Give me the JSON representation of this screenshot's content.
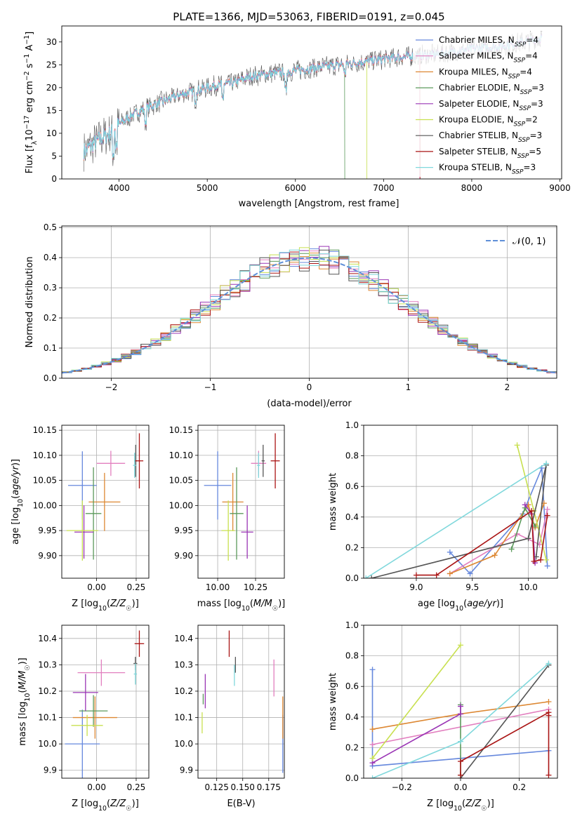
{
  "figure_title": "PLATE=1366, MJD=53063, FIBERID=0191, z=0.045",
  "colors": {
    "Chabrier MILES": "#6688dd",
    "Salpeter MILES": "#e27fbf",
    "Kroupa MILES": "#dd8833",
    "Chabrier ELODIE": "#5b9a5b",
    "Salpeter ELODIE": "#9a35b5",
    "Kroupa ELODIE": "#c8e050",
    "Chabrier STELIB": "#555555",
    "Salpeter STELIB": "#aa1515",
    "Kroupa STELIB": "#80d8dc",
    "normal": "#5f8fd8"
  },
  "legend_spectrum": [
    {
      "name": "Chabrier MILES",
      "nssp": "4"
    },
    {
      "name": "Salpeter MILES",
      "nssp": "4"
    },
    {
      "name": "Kroupa MILES",
      "nssp": "4"
    },
    {
      "name": "Chabrier ELODIE",
      "nssp": "3"
    },
    {
      "name": "Salpeter ELODIE",
      "nssp": "3"
    },
    {
      "name": "Kroupa ELODIE",
      "nssp": "2"
    },
    {
      "name": "Chabrier STELIB",
      "nssp": "3"
    },
    {
      "name": "Salpeter STELIB",
      "nssp": "5"
    },
    {
      "name": "Kroupa STELIB",
      "nssp": "3"
    }
  ],
  "chart_data": [
    {
      "id": "spectrum",
      "type": "line",
      "xlabel": "wavelength [Angstrom, rest frame]",
      "ylabel": "Flux [f_λ 10^-17 erg cm^-2 s^-1 A^-1]",
      "xlim": [
        3350,
        9020
      ],
      "ylim": [
        0,
        33.5
      ],
      "xticks": [
        4000,
        5000,
        6000,
        7000,
        8000,
        9000
      ],
      "yticks": [
        0,
        5,
        10,
        15,
        20,
        25,
        30
      ],
      "grid": false,
      "legend_position": "right",
      "continuum_x": [
        3600,
        3700,
        3800,
        3900,
        4000,
        4150,
        4300,
        4500,
        4700,
        4900,
        5100,
        5300,
        5500,
        5700,
        5900,
        6100,
        6300,
        6500,
        6700,
        6900,
        7100,
        7400,
        7700,
        8000,
        8300,
        8600,
        8800
      ],
      "continuum_y": [
        6,
        7.5,
        9,
        10,
        12,
        14,
        15.5,
        17,
        18.5,
        19.5,
        20.5,
        21,
        22.5,
        23,
        23.5,
        24,
        24.5,
        25,
        25.5,
        26,
        26.5,
        27,
        27.5,
        28.5,
        29,
        30,
        31
      ],
      "spectrum_range": [
        3600,
        8800
      ],
      "dropoffs": [
        {
          "series": "Kroupa ELODIE",
          "x": 6810
        },
        {
          "series": "Kroupa MILES",
          "x": 7410
        },
        {
          "series": "Salpeter MILES",
          "x": 7410
        },
        {
          "series": "Salpeter STELIB",
          "x": 7415
        },
        {
          "series": "Chabrier ELODIE",
          "x": 6560
        }
      ]
    },
    {
      "id": "residuals",
      "type": "line",
      "xlabel": "(data-model)/error",
      "ylabel": "Normed distribution",
      "xlim": [
        -2.5,
        2.5
      ],
      "ylim": [
        0,
        0.505
      ],
      "xticks": [
        -2,
        -1,
        0,
        1,
        2
      ],
      "yticks": [
        0.0,
        0.1,
        0.2,
        0.3,
        0.4,
        0.5
      ],
      "grid": true,
      "legend": [
        {
          "name": "𝒩(0, 1)",
          "style": "dashed"
        }
      ],
      "legend_position": "upper right",
      "histogram_bin_width": 0.1,
      "histogram_series": [
        "Chabrier MILES",
        "Salpeter MILES",
        "Kroupa MILES",
        "Chabrier ELODIE",
        "Salpeter ELODIE",
        "Kroupa ELODIE",
        "Chabrier STELIB",
        "Salpeter STELIB",
        "Kroupa STELIB"
      ]
    },
    {
      "id": "age_vs_Z",
      "type": "scatter",
      "xlabel": "Z [log10(Z/Z☉)]",
      "ylabel": "age [log10(age/yr)]",
      "xlim": [
        -0.22,
        0.33
      ],
      "ylim": [
        9.855,
        10.16
      ],
      "xticks": [
        0.0,
        0.25
      ],
      "yticks": [
        9.9,
        9.95,
        10.0,
        10.05,
        10.1,
        10.15
      ],
      "grid": true,
      "points": [
        {
          "series": "Chabrier MILES",
          "x": -0.09,
          "xerr": 0.09,
          "y": 10.04,
          "yerr": 0.068
        },
        {
          "series": "Salpeter MILES",
          "x": 0.09,
          "xerr": 0.09,
          "y": 10.084,
          "yerr": 0.025
        },
        {
          "series": "Kroupa MILES",
          "x": 0.05,
          "xerr": 0.1,
          "y": 10.007,
          "yerr": 0.058
        },
        {
          "series": "Chabrier ELODIE",
          "x": -0.02,
          "xerr": 0.05,
          "y": 9.984,
          "yerr": 0.092
        },
        {
          "series": "Salpeter ELODIE",
          "x": -0.08,
          "xerr": 0.06,
          "y": 9.947,
          "yerr": 0.053
        },
        {
          "series": "Kroupa ELODIE",
          "x": -0.09,
          "xerr": 0.1,
          "y": 9.95,
          "yerr": 0.06
        },
        {
          "series": "Chabrier STELIB",
          "x": 0.247,
          "xerr": 0.008,
          "y": 10.089,
          "yerr": 0.032
        },
        {
          "series": "Salpeter STELIB",
          "x": 0.27,
          "xerr": 0.025,
          "y": 10.089,
          "yerr": 0.055
        },
        {
          "series": "Kroupa STELIB",
          "x": 0.24,
          "xerr": 0.01,
          "y": 10.08,
          "yerr": 0.025
        }
      ]
    },
    {
      "id": "age_vs_mass",
      "type": "scatter",
      "xlabel": "mass [log10(M/M☉)]",
      "ylabel": "",
      "xlim": [
        9.87,
        10.44
      ],
      "ylim": [
        9.855,
        10.16
      ],
      "xticks": [
        10.0,
        10.25
      ],
      "yticks": [
        9.9,
        9.95,
        10.0,
        10.05,
        10.1,
        10.15
      ],
      "grid": true,
      "points": [
        {
          "series": "Chabrier MILES",
          "x": 10.0,
          "xerr": 0.09,
          "y": 10.04,
          "yerr": 0.068
        },
        {
          "series": "Salpeter MILES",
          "x": 10.27,
          "xerr": 0.05,
          "y": 10.084,
          "yerr": 0.025
        },
        {
          "series": "Kroupa MILES",
          "x": 10.1,
          "xerr": 0.07,
          "y": 10.007,
          "yerr": 0.058
        },
        {
          "series": "Chabrier ELODIE",
          "x": 10.125,
          "xerr": 0.045,
          "y": 9.984,
          "yerr": 0.092
        },
        {
          "series": "Salpeter ELODIE",
          "x": 10.195,
          "xerr": 0.04,
          "y": 9.947,
          "yerr": 0.053
        },
        {
          "series": "Kroupa ELODIE",
          "x": 10.07,
          "xerr": 0.045,
          "y": 9.95,
          "yerr": 0.06
        },
        {
          "series": "Chabrier STELIB",
          "x": 10.3,
          "xerr": 0.01,
          "y": 10.089,
          "yerr": 0.032
        },
        {
          "series": "Salpeter STELIB",
          "x": 10.38,
          "xerr": 0.03,
          "y": 10.089,
          "yerr": 0.055
        },
        {
          "series": "Kroupa STELIB",
          "x": 10.27,
          "xerr": 0.01,
          "y": 10.08,
          "yerr": 0.025
        }
      ]
    },
    {
      "id": "weight_vs_age",
      "type": "line",
      "xlabel": "age [log10(age/yr)]",
      "ylabel": "mass weight",
      "xlim": [
        8.53,
        10.26
      ],
      "ylim": [
        0,
        1.0
      ],
      "xticks": [
        9.0,
        9.5,
        10.0
      ],
      "yticks": [
        0.0,
        0.2,
        0.4,
        0.6,
        0.8,
        1.0
      ],
      "grid": true,
      "series": [
        {
          "name": "Chabrier MILES",
          "x": [
            9.3,
            9.48,
            9.95,
            10.12,
            10.17
          ],
          "y": [
            0.17,
            0.03,
            0.42,
            0.72,
            0.08
          ]
        },
        {
          "name": "Salpeter MILES",
          "x": [
            9.3,
            9.9,
            10.1,
            10.17
          ],
          "y": [
            0.03,
            0.29,
            0.22,
            0.45
          ]
        },
        {
          "name": "Kroupa MILES",
          "x": [
            9.3,
            9.7,
            10.0,
            10.06,
            10.14
          ],
          "y": [
            0.03,
            0.15,
            0.48,
            0.33,
            0.49
          ]
        },
        {
          "name": "Chabrier ELODIE",
          "x": [
            9.85,
            9.97,
            10.06
          ],
          "y": [
            0.19,
            0.46,
            0.34
          ]
        },
        {
          "name": "Salpeter ELODIE",
          "x": [
            9.97,
            10.03,
            10.06
          ],
          "y": [
            0.48,
            0.42,
            0.1
          ]
        },
        {
          "name": "Kroupa ELODIE",
          "x": [
            9.9,
            10.05,
            10.16
          ],
          "y": [
            0.87,
            0.44,
            0.12
          ]
        },
        {
          "name": "Chabrier STELIB",
          "x": [
            8.6,
            10.0,
            10.16,
            10.07
          ],
          "y": [
            0.0,
            0.26,
            0.74,
            0.14
          ]
        },
        {
          "name": "Salpeter STELIB",
          "x": [
            9.0,
            9.18,
            10.03,
            10.05,
            10.11,
            10.17
          ],
          "y": [
            0.02,
            0.02,
            0.44,
            0.11,
            0.12,
            0.41
          ]
        },
        {
          "name": "Kroupa STELIB",
          "x": [
            8.55,
            10.16
          ],
          "y": [
            0.0,
            0.75
          ]
        }
      ]
    },
    {
      "id": "mass_vs_Z",
      "type": "scatter",
      "xlabel": "Z [log10(Z/Z☉)]",
      "ylabel": "mass [log10(M/M☉)]",
      "xlim": [
        -0.22,
        0.33
      ],
      "ylim": [
        9.87,
        10.45
      ],
      "xticks": [
        0.0,
        0.25
      ],
      "yticks": [
        9.9,
        10.0,
        10.1,
        10.2,
        10.3,
        10.4
      ],
      "grid": true,
      "points": [
        {
          "series": "Chabrier MILES",
          "x": -0.09,
          "xerr": 0.11,
          "y": 10.0,
          "yerr": 0.13
        },
        {
          "series": "Salpeter MILES",
          "x": 0.03,
          "xerr": 0.15,
          "y": 10.27,
          "yerr": 0.05
        },
        {
          "series": "Kroupa MILES",
          "x": -0.01,
          "xerr": 0.14,
          "y": 10.1,
          "yerr": 0.08
        },
        {
          "series": "Chabrier ELODIE",
          "x": -0.02,
          "xerr": 0.09,
          "y": 10.125,
          "yerr": 0.06
        },
        {
          "series": "Salpeter ELODIE",
          "x": -0.07,
          "xerr": 0.08,
          "y": 10.195,
          "yerr": 0.07
        },
        {
          "series": "Kroupa ELODIE",
          "x": -0.06,
          "xerr": 0.1,
          "y": 10.07,
          "yerr": 0.04
        },
        {
          "series": "Chabrier STELIB",
          "x": 0.245,
          "xerr": 0.012,
          "y": 10.305,
          "yerr": 0.025
        },
        {
          "series": "Salpeter STELIB",
          "x": 0.27,
          "xerr": 0.03,
          "y": 10.38,
          "yerr": 0.05
        },
        {
          "series": "Kroupa STELIB",
          "x": 0.245,
          "xerr": 0.01,
          "y": 10.265,
          "yerr": 0.04
        }
      ]
    },
    {
      "id": "mass_vs_EBV",
      "type": "scatter",
      "xlabel": "E(B-V)",
      "ylabel": "",
      "xlim": [
        0.107,
        0.19
      ],
      "ylim": [
        9.87,
        10.45
      ],
      "xticks": [
        0.125,
        0.15,
        0.175
      ],
      "xticklabels": [
        "0.125",
        "0.150",
        "0.175"
      ],
      "yticks": [
        9.9,
        10.0,
        10.1,
        10.2,
        10.3,
        10.4
      ],
      "grid": true,
      "points": [
        {
          "series": "Chabrier MILES",
          "x": 0.1885,
          "y": 10.0,
          "yerr": 0.11
        },
        {
          "series": "Salpeter MILES",
          "x": 0.18,
          "y": 10.25,
          "yerr": 0.07
        },
        {
          "series": "Kroupa MILES",
          "x": 0.1885,
          "y": 10.1,
          "yerr": 0.08
        },
        {
          "series": "Chabrier ELODIE",
          "x": 0.112,
          "y": 10.17,
          "yerr": 0.02
        },
        {
          "series": "Salpeter ELODIE",
          "x": 0.114,
          "y": 10.2,
          "yerr": 0.065
        },
        {
          "series": "Kroupa ELODIE",
          "x": 0.111,
          "y": 10.08,
          "yerr": 0.04
        },
        {
          "series": "Chabrier STELIB",
          "x": 0.143,
          "y": 10.3,
          "yerr": 0.03
        },
        {
          "series": "Salpeter STELIB",
          "x": 0.137,
          "y": 10.38,
          "yerr": 0.05
        },
        {
          "series": "Kroupa STELIB",
          "x": 0.142,
          "y": 10.26,
          "yerr": 0.04
        }
      ]
    },
    {
      "id": "weight_vs_Z",
      "type": "line",
      "xlabel": "Z [log10(Z/Z☉)]",
      "ylabel": "mass weight",
      "xlim": [
        -0.33,
        0.33
      ],
      "ylim": [
        0,
        1.0
      ],
      "xticks": [
        -0.2,
        0.0,
        0.2
      ],
      "yticks": [
        0.0,
        0.2,
        0.4,
        0.6,
        0.8,
        1.0
      ],
      "grid": true,
      "series": [
        {
          "name": "Chabrier MILES",
          "x": [
            -0.3,
            -0.3,
            0.0,
            0.3
          ],
          "y": [
            0.71,
            0.08,
            0.13,
            0.18
          ]
        },
        {
          "name": "Salpeter MILES",
          "x": [
            -0.3,
            0.3
          ],
          "y": [
            0.22,
            0.45
          ]
        },
        {
          "name": "Kroupa MILES",
          "x": [
            -0.3,
            0.0,
            0.3
          ],
          "y": [
            0.32,
            0.42,
            0.5
          ]
        },
        {
          "name": "Chabrier ELODIE",
          "x": [
            0.0,
            0.0
          ],
          "y": [
            0.48,
            0.02
          ]
        },
        {
          "name": "Salpeter ELODIE",
          "x": [
            -0.3,
            0.0,
            0.0
          ],
          "y": [
            0.1,
            0.42,
            0.47
          ]
        },
        {
          "name": "Kroupa ELODIE",
          "x": [
            -0.3,
            0.0
          ],
          "y": [
            0.13,
            0.87
          ]
        },
        {
          "name": "Chabrier STELIB",
          "x": [
            0.0,
            0.3
          ],
          "y": [
            0.0,
            0.74
          ]
        },
        {
          "name": "Salpeter STELIB",
          "x": [
            0.0,
            0.0,
            0.3,
            0.3,
            0.3
          ],
          "y": [
            0.02,
            0.11,
            0.43,
            0.41,
            0.02
          ]
        },
        {
          "name": "Kroupa STELIB",
          "x": [
            -0.3,
            0.0,
            0.3
          ],
          "y": [
            0.0,
            0.24,
            0.75
          ]
        }
      ]
    }
  ]
}
